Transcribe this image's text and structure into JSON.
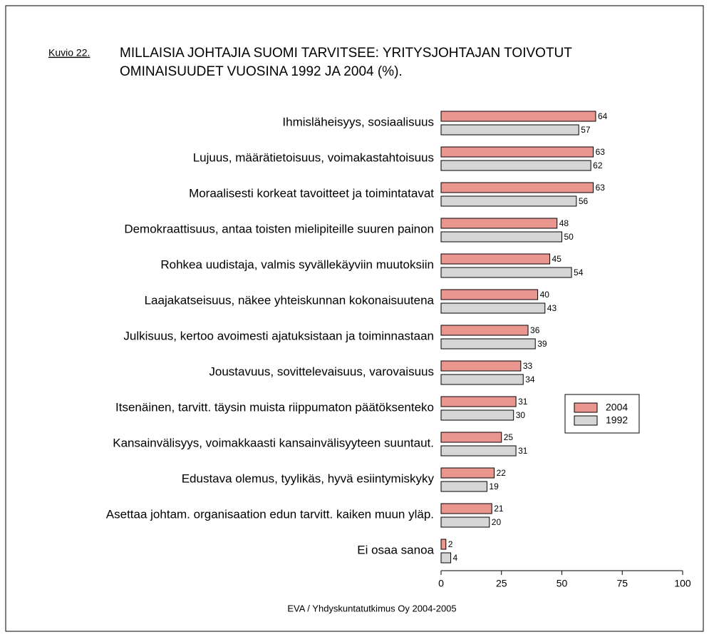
{
  "chart_data": {
    "type": "hbar",
    "figure_label": "Kuvio 22.",
    "title": [
      "MILLAISIA JOHTAJIA SUOMI TARVITSEE: YRITYSJOHTAJAN TOIVOTUT",
      "OMINAISUUDET VUOSINA 1992 JA 2004 (%)."
    ],
    "source": "EVA / Yhdyskuntatutkimus Oy 2004-2005",
    "categories": [
      "Ihmisläheisyys, sosiaalisuus",
      "Lujuus, määrätietoisuus, voimakastahtoisuus",
      "Moraalisesti korkeat tavoitteet ja toimintatavat",
      "Demokraattisuus, antaa toisten mielipiteille suuren painon",
      "Rohkea uudistaja, valmis syvällekäyviin muutoksiin",
      "Laajakatseisuus, näkee yhteiskunnan kokonaisuutena",
      "Julkisuus, kertoo avoimesti ajatuksistaan ja toiminnastaan",
      "Joustavuus, sovittelevaisuus, varovaisuus",
      "Itsenäinen, tarvitt. täysin muista riippumaton päätöksenteko",
      "Kansainvälisyys, voimakkaasti kansainvälisyyteen suuntaut.",
      "Edustava olemus, tyylikäs, hyvä esiintymiskyky",
      "Asettaa johtam. organisaation edun tarvitt. kaiken muun yläp.",
      "Ei osaa sanoa"
    ],
    "series": [
      {
        "name": "2004",
        "color": "#e9968f",
        "values": [
          64,
          63,
          63,
          48,
          45,
          40,
          36,
          33,
          31,
          25,
          22,
          21,
          2
        ]
      },
      {
        "name": "1992",
        "color": "#d6d6d6",
        "values": [
          57,
          62,
          56,
          50,
          54,
          43,
          39,
          34,
          30,
          31,
          19,
          20,
          4
        ]
      }
    ],
    "xlim": [
      0,
      100
    ],
    "xticks": [
      0,
      25,
      50,
      75,
      100
    ],
    "grid": false
  }
}
